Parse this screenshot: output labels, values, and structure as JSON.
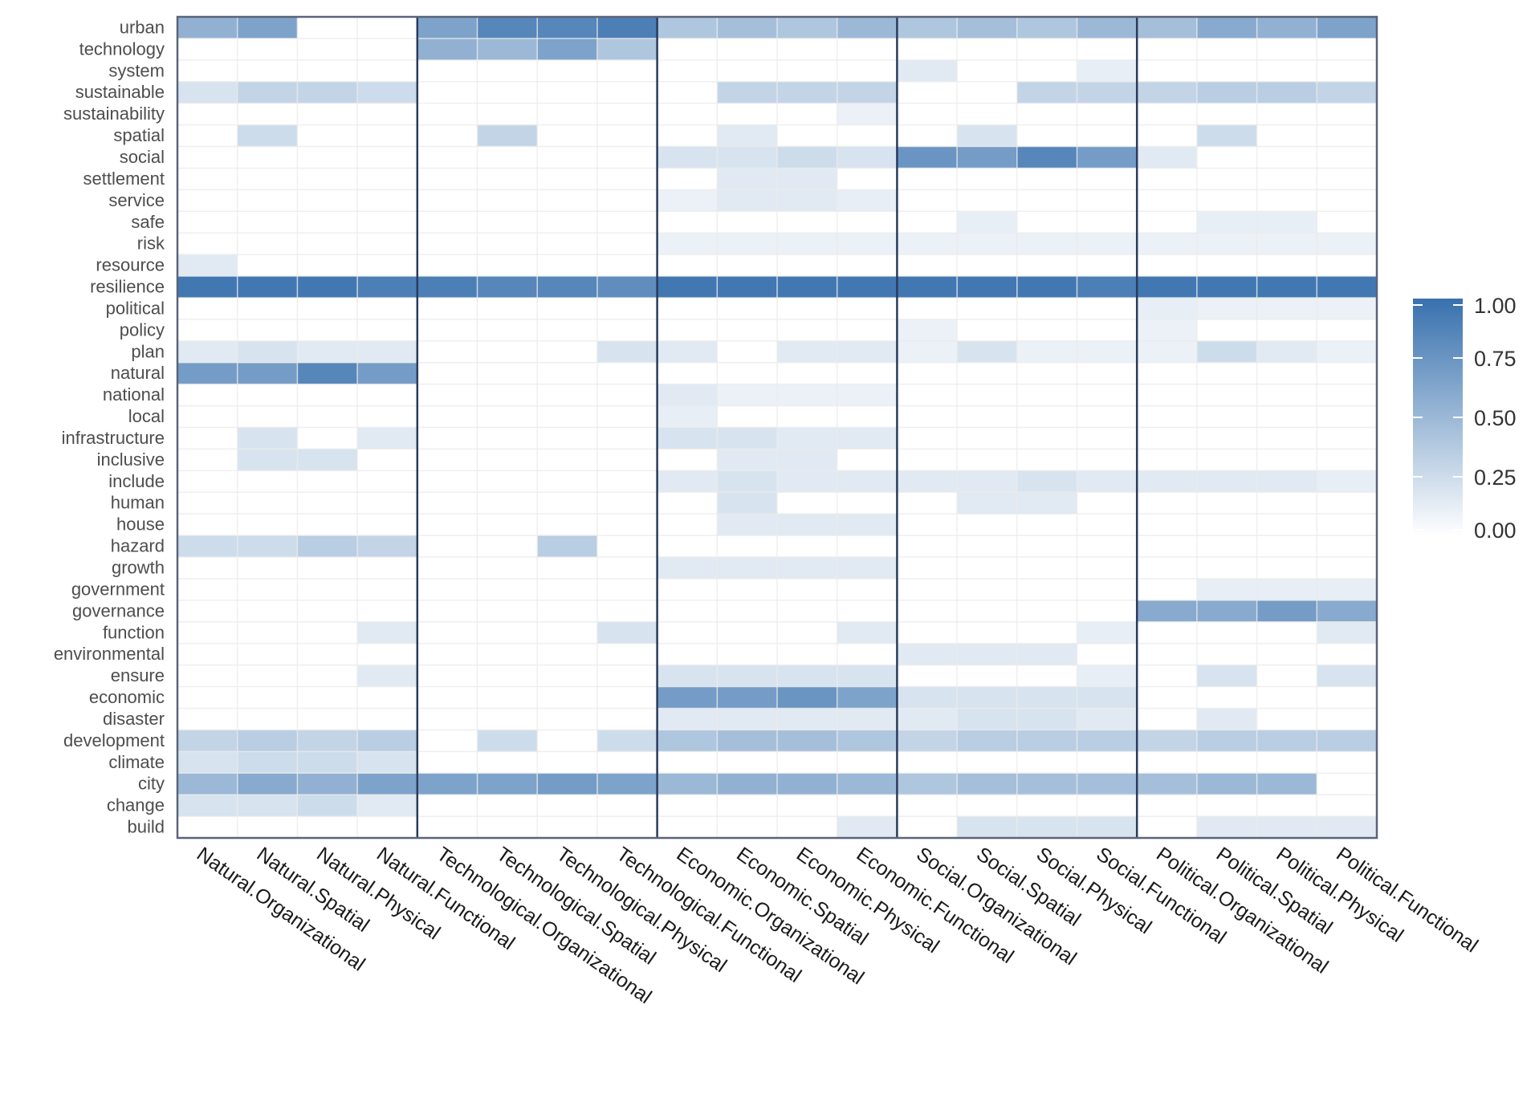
{
  "chart_data": {
    "type": "heatmap",
    "title": "",
    "xlabel": "",
    "ylabel": "",
    "color_low": "#ffffff",
    "color_high": "#3871ae",
    "separator_color": "#2b3a5c",
    "x": [
      "Natural.Organizational",
      "Natural.Spatial",
      "Natural.Physical",
      "Natural.Functional",
      "Technological.Organizational",
      "Technological.Spatial",
      "Technological.Physical",
      "Technological.Functional",
      "Economic.Organizational",
      "Economic.Spatial",
      "Economic.Physical",
      "Economic.Functional",
      "Social.Organizational",
      "Social.Spatial",
      "Social.Physical",
      "Social.Functional",
      "Political.Organizational",
      "Political.Spatial",
      "Political.Physical",
      "Political.Functional"
    ],
    "group_size": 4,
    "y": [
      "urban",
      "technology",
      "system",
      "sustainable",
      "sustainability",
      "spatial",
      "social",
      "settlement",
      "service",
      "safe",
      "risk",
      "resource",
      "resilience",
      "political",
      "policy",
      "plan",
      "natural",
      "national",
      "local",
      "infrastructure",
      "inclusive",
      "include",
      "human",
      "house",
      "hazard",
      "growth",
      "government",
      "governance",
      "function",
      "environmental",
      "ensure",
      "economic",
      "disaster",
      "development",
      "climate",
      "city",
      "change",
      "build"
    ],
    "values": [
      [
        0.55,
        0.65,
        0,
        0,
        0.65,
        0.85,
        0.85,
        0.9,
        0.4,
        0.45,
        0.4,
        0.5,
        0.4,
        0.45,
        0.4,
        0.5,
        0.45,
        0.6,
        0.55,
        0.65
      ],
      [
        0,
        0,
        0,
        0,
        0.55,
        0.5,
        0.65,
        0.4,
        0,
        0,
        0,
        0,
        0,
        0,
        0,
        0,
        0,
        0,
        0,
        0
      ],
      [
        0,
        0,
        0,
        0,
        0,
        0,
        0,
        0,
        0,
        0,
        0,
        0,
        0.15,
        0,
        0,
        0.12,
        0,
        0,
        0,
        0
      ],
      [
        0.2,
        0.3,
        0.3,
        0.25,
        0,
        0,
        0,
        0,
        0,
        0.3,
        0.3,
        0.3,
        0,
        0,
        0.3,
        0.3,
        0.3,
        0.35,
        0.35,
        0.3
      ],
      [
        0,
        0,
        0,
        0,
        0,
        0,
        0,
        0,
        0,
        0,
        0,
        0.1,
        0,
        0,
        0,
        0,
        0,
        0,
        0,
        0
      ],
      [
        0,
        0.25,
        0,
        0,
        0,
        0.3,
        0,
        0,
        0,
        0.15,
        0,
        0,
        0,
        0.2,
        0,
        0,
        0,
        0.25,
        0,
        0
      ],
      [
        0,
        0,
        0,
        0,
        0,
        0,
        0,
        0,
        0.2,
        0.2,
        0.25,
        0.2,
        0.75,
        0.7,
        0.85,
        0.7,
        0.15,
        0,
        0,
        0
      ],
      [
        0,
        0,
        0,
        0,
        0,
        0,
        0,
        0,
        0,
        0.15,
        0.15,
        0,
        0,
        0,
        0,
        0,
        0,
        0,
        0,
        0
      ],
      [
        0,
        0,
        0,
        0,
        0,
        0,
        0,
        0,
        0.1,
        0.15,
        0.15,
        0.12,
        0,
        0,
        0,
        0,
        0,
        0,
        0,
        0
      ],
      [
        0,
        0,
        0,
        0,
        0,
        0,
        0,
        0,
        0,
        0,
        0,
        0,
        0,
        0.12,
        0,
        0,
        0,
        0.12,
        0.12,
        0
      ],
      [
        0,
        0,
        0,
        0,
        0,
        0,
        0,
        0,
        0.1,
        0.1,
        0.1,
        0.1,
        0.1,
        0.1,
        0.1,
        0.1,
        0.1,
        0.1,
        0.1,
        0.1
      ],
      [
        0.15,
        0,
        0,
        0,
        0,
        0,
        0,
        0,
        0,
        0,
        0,
        0,
        0,
        0,
        0,
        0,
        0,
        0,
        0,
        0
      ],
      [
        0.95,
        0.95,
        0.95,
        0.9,
        0.9,
        0.85,
        0.85,
        0.8,
        0.95,
        0.95,
        0.95,
        0.95,
        0.95,
        0.95,
        0.95,
        0.9,
        0.95,
        0.95,
        0.95,
        0.95
      ],
      [
        0,
        0,
        0,
        0,
        0,
        0,
        0,
        0,
        0,
        0,
        0,
        0,
        0,
        0,
        0,
        0,
        0.12,
        0.1,
        0.1,
        0.1
      ],
      [
        0,
        0,
        0,
        0,
        0,
        0,
        0,
        0,
        0,
        0,
        0,
        0,
        0.1,
        0,
        0,
        0,
        0.1,
        0,
        0,
        0
      ],
      [
        0.15,
        0.2,
        0.15,
        0.15,
        0,
        0,
        0,
        0.2,
        0.15,
        0,
        0.15,
        0.15,
        0.1,
        0.2,
        0.1,
        0.1,
        0.1,
        0.25,
        0.15,
        0.1
      ],
      [
        0.7,
        0.7,
        0.85,
        0.7,
        0,
        0,
        0,
        0,
        0,
        0,
        0,
        0,
        0,
        0,
        0,
        0,
        0,
        0,
        0,
        0
      ],
      [
        0,
        0,
        0,
        0,
        0,
        0,
        0,
        0,
        0.15,
        0.1,
        0.1,
        0.1,
        0,
        0,
        0,
        0,
        0,
        0,
        0,
        0
      ],
      [
        0,
        0,
        0,
        0,
        0,
        0,
        0,
        0,
        0.12,
        0,
        0,
        0,
        0,
        0,
        0,
        0,
        0,
        0,
        0,
        0
      ],
      [
        0,
        0.2,
        0,
        0.15,
        0,
        0,
        0,
        0,
        0.2,
        0.2,
        0.15,
        0.15,
        0,
        0,
        0,
        0,
        0,
        0,
        0,
        0
      ],
      [
        0,
        0.2,
        0.2,
        0,
        0,
        0,
        0,
        0,
        0,
        0.15,
        0.15,
        0,
        0,
        0,
        0,
        0,
        0,
        0,
        0,
        0
      ],
      [
        0,
        0,
        0,
        0,
        0,
        0,
        0,
        0,
        0.15,
        0.2,
        0.15,
        0.15,
        0.15,
        0.15,
        0.2,
        0.15,
        0.15,
        0.15,
        0.15,
        0.12
      ],
      [
        0,
        0,
        0,
        0,
        0,
        0,
        0,
        0,
        0,
        0.2,
        0,
        0,
        0,
        0.15,
        0.15,
        0,
        0,
        0,
        0,
        0
      ],
      [
        0,
        0,
        0,
        0,
        0,
        0,
        0,
        0,
        0,
        0.15,
        0.15,
        0.15,
        0,
        0,
        0,
        0,
        0,
        0,
        0,
        0
      ],
      [
        0.25,
        0.25,
        0.35,
        0.3,
        0,
        0,
        0.35,
        0,
        0,
        0,
        0,
        0,
        0,
        0,
        0,
        0,
        0,
        0,
        0,
        0
      ],
      [
        0,
        0,
        0,
        0,
        0,
        0,
        0,
        0,
        0.15,
        0.15,
        0.15,
        0.15,
        0,
        0,
        0,
        0,
        0,
        0,
        0,
        0
      ],
      [
        0,
        0,
        0,
        0,
        0,
        0,
        0,
        0,
        0,
        0,
        0,
        0,
        0,
        0,
        0,
        0,
        0,
        0.12,
        0.12,
        0.12
      ],
      [
        0,
        0,
        0,
        0,
        0,
        0,
        0,
        0,
        0,
        0,
        0,
        0,
        0,
        0,
        0,
        0,
        0.6,
        0.6,
        0.7,
        0.6
      ],
      [
        0,
        0,
        0,
        0.15,
        0,
        0,
        0,
        0.2,
        0,
        0,
        0,
        0.15,
        0,
        0,
        0,
        0.12,
        0,
        0,
        0,
        0.15
      ],
      [
        0,
        0,
        0,
        0,
        0,
        0,
        0,
        0,
        0,
        0,
        0,
        0,
        0.15,
        0.15,
        0.15,
        0,
        0,
        0,
        0,
        0
      ],
      [
        0,
        0,
        0,
        0.15,
        0,
        0,
        0,
        0,
        0.2,
        0.2,
        0.2,
        0.2,
        0,
        0,
        0,
        0.12,
        0,
        0.2,
        0,
        0.2
      ],
      [
        0,
        0,
        0,
        0,
        0,
        0,
        0,
        0,
        0.7,
        0.7,
        0.75,
        0.65,
        0.2,
        0.2,
        0.2,
        0.2,
        0,
        0,
        0,
        0
      ],
      [
        0,
        0,
        0,
        0,
        0,
        0,
        0,
        0,
        0.15,
        0.15,
        0.15,
        0.15,
        0.15,
        0.2,
        0.2,
        0.15,
        0,
        0.15,
        0,
        0
      ],
      [
        0.3,
        0.35,
        0.3,
        0.35,
        0,
        0.25,
        0,
        0.25,
        0.4,
        0.45,
        0.45,
        0.4,
        0.3,
        0.35,
        0.35,
        0.35,
        0.3,
        0.35,
        0.35,
        0.35
      ],
      [
        0.2,
        0.25,
        0.25,
        0.2,
        0,
        0,
        0,
        0,
        0,
        0,
        0,
        0,
        0,
        0,
        0,
        0,
        0,
        0,
        0,
        0
      ],
      [
        0.5,
        0.6,
        0.55,
        0.65,
        0.65,
        0.65,
        0.7,
        0.65,
        0.5,
        0.55,
        0.55,
        0.5,
        0.4,
        0.45,
        0.45,
        0.45,
        0.45,
        0.5,
        0.5,
        0
      ],
      [
        0.2,
        0.2,
        0.25,
        0.15,
        0,
        0,
        0,
        0,
        0,
        0,
        0,
        0,
        0,
        0,
        0,
        0,
        0,
        0,
        0,
        0
      ],
      [
        0,
        0,
        0,
        0,
        0,
        0,
        0,
        0,
        0,
        0,
        0,
        0.15,
        0,
        0.2,
        0.2,
        0.2,
        0,
        0.15,
        0.15,
        0.15
      ]
    ],
    "value_range": [
      0,
      1
    ],
    "legend": {
      "placement": "right",
      "ticks": [
        0,
        0.25,
        0.5,
        0.75,
        1
      ],
      "tick_labels": [
        "0.00",
        "0.25",
        "0.50",
        "0.75",
        "1.00"
      ]
    },
    "grid": true
  }
}
